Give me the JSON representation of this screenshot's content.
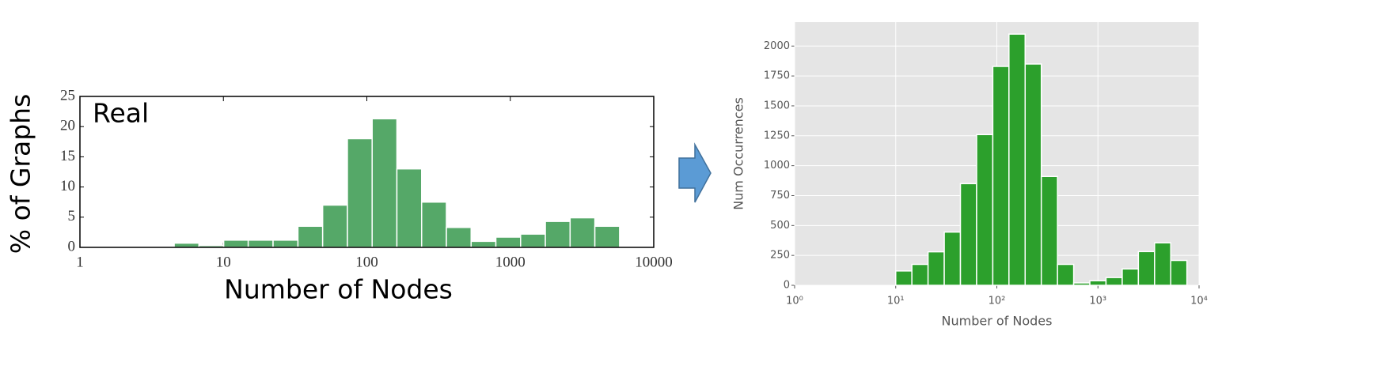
{
  "chart_data": [
    {
      "type": "histogram",
      "annotation": "Real",
      "xlabel": "Number of Nodes",
      "ylabel": "% of Graphs",
      "xscale": "log",
      "xlim": [
        1,
        10000
      ],
      "xticks": [
        1,
        10,
        100,
        1000,
        10000
      ],
      "ylim": [
        0,
        25
      ],
      "yticks": [
        0,
        5,
        10,
        15,
        20,
        25
      ],
      "grid": false,
      "mirror_ticks": true,
      "color": "#55a868",
      "edgecolor": "#ffffff",
      "facecolor": "#ffffff",
      "bins": [
        4.54,
        6.75,
        10.05,
        14.9,
        22.2,
        33.1,
        49.2,
        73.2,
        108.9,
        162.0,
        241.0,
        358.5,
        533.3,
        793.4,
        1180,
        1756,
        2612,
        3886,
        5781
      ],
      "values": [
        0.7,
        0.3,
        1.2,
        1.2,
        1.2,
        3.5,
        7,
        18,
        21.3,
        13,
        7.5,
        3.3,
        1,
        1.7,
        2.2,
        4.3,
        4.9,
        3.5
      ]
    },
    {
      "type": "histogram",
      "xlabel": "Number of Nodes",
      "ylabel": "Num Occurrences",
      "xscale": "log",
      "xlim": [
        1,
        10000
      ],
      "xticks": [
        {
          "value": 1,
          "label": "10⁰"
        },
        {
          "value": 10,
          "label": "10¹"
        },
        {
          "value": 100,
          "label": "10²"
        },
        {
          "value": 1000,
          "label": "10³"
        },
        {
          "value": 10000,
          "label": "10⁴"
        }
      ],
      "ylim": [
        0,
        2200
      ],
      "yticks": [
        0,
        250,
        500,
        750,
        1000,
        1250,
        1500,
        1750,
        2000
      ],
      "grid": true,
      "mirror_ticks": false,
      "color": "#2ca02c",
      "edgecolor": "#ffffff",
      "facecolor": "#e5e5e5",
      "bins": [
        10,
        14.45,
        20.89,
        30.2,
        43.65,
        63.1,
        91.2,
        131.8,
        190.5,
        275.4,
        398.1,
        575.4,
        831.8,
        1202,
        1738,
        2512,
        3631,
        5248,
        7586
      ],
      "values": [
        120,
        175,
        280,
        445,
        850,
        1260,
        1830,
        2100,
        1850,
        910,
        175,
        20,
        38,
        65,
        137,
        282,
        355,
        208
      ]
    }
  ]
}
